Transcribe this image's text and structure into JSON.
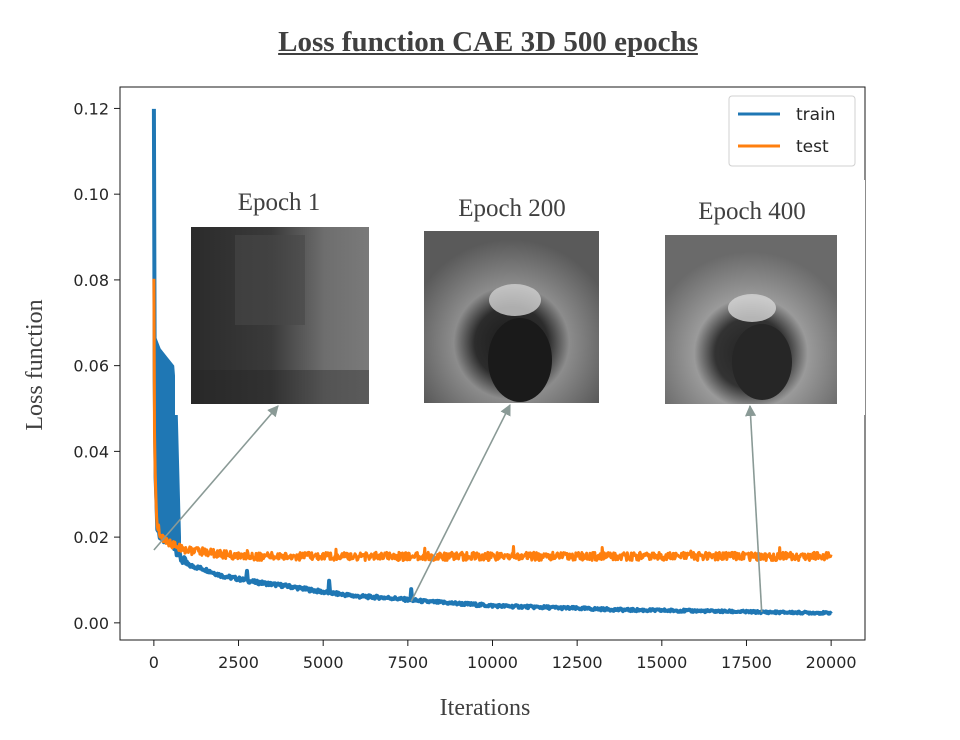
{
  "chart_data": {
    "type": "line",
    "title": "Loss function CAE 3D 500 epochs",
    "xlabel": "Iterations",
    "ylabel": "Loss function",
    "xlim": [
      -1000,
      21000
    ],
    "ylim": [
      -0.004,
      0.125
    ],
    "xticks": [
      0,
      2500,
      5000,
      7500,
      10000,
      12500,
      15000,
      17500,
      20000
    ],
    "yticks": [
      0.0,
      0.02,
      0.04,
      0.06,
      0.08,
      0.1,
      0.12
    ],
    "ytick_labels": [
      "0.00",
      "0.02",
      "0.04",
      "0.06",
      "0.08",
      "0.10",
      "0.12"
    ],
    "legend": {
      "position": "top-right"
    },
    "series": [
      {
        "name": "train",
        "color": "#1f77b4",
        "x": [
          0,
          20,
          50,
          100,
          200,
          400,
          600,
          800,
          1000,
          1500,
          2000,
          3000,
          4000,
          5000,
          6000,
          7000,
          8000,
          9000,
          10000,
          12000,
          14000,
          16000,
          18000,
          20000
        ],
        "y": [
          0.121,
          0.06,
          0.035,
          0.022,
          0.02,
          0.019,
          0.018,
          0.015,
          0.0135,
          0.0125,
          0.011,
          0.0095,
          0.0085,
          0.0072,
          0.0062,
          0.0058,
          0.005,
          0.0045,
          0.004,
          0.0035,
          0.003,
          0.0028,
          0.0025,
          0.0023
        ],
        "band_x": [
          50,
          200,
          400,
          600,
          700,
          800
        ],
        "band_hi": [
          0.067,
          0.064,
          0.062,
          0.06,
          0.05,
          0.02
        ],
        "band_lo": [
          0.03,
          0.02,
          0.019,
          0.018,
          0.017,
          0.015
        ]
      },
      {
        "name": "test",
        "color": "#ff7f0e",
        "x": [
          0,
          20,
          50,
          100,
          200,
          400,
          600,
          800,
          1000,
          1500,
          2000,
          2500,
          3000,
          4000,
          5000,
          6000,
          8000,
          10000,
          12000,
          14000,
          16000,
          18000,
          20000
        ],
        "y": [
          0.081,
          0.045,
          0.03,
          0.022,
          0.02,
          0.019,
          0.018,
          0.0175,
          0.017,
          0.0165,
          0.016,
          0.0155,
          0.0155,
          0.0155,
          0.0155,
          0.0155,
          0.0155,
          0.0155,
          0.0155,
          0.0155,
          0.0155,
          0.0155,
          0.0155
        ],
        "noise": 0.0012
      }
    ],
    "insets": [
      {
        "label": "Epoch 1",
        "arrow_iteration": 0,
        "arrow_value": 0.017
      },
      {
        "label": "Epoch 200",
        "arrow_iteration": 7600,
        "arrow_value": 0.005
      },
      {
        "label": "Epoch 400",
        "arrow_iteration": 17950,
        "arrow_value": 0.0025
      }
    ]
  }
}
